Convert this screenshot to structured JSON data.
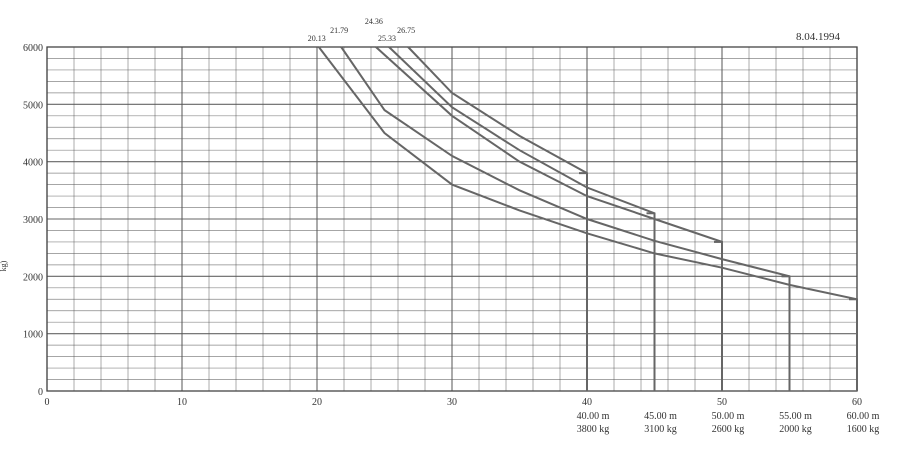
{
  "chart_data": {
    "type": "line",
    "date": "8.04.1994",
    "xlim": [
      0,
      60
    ],
    "ylim": [
      0,
      6000
    ],
    "x_ticks": [
      "0",
      "10",
      "20",
      "30",
      "40",
      "50",
      "60"
    ],
    "y_ticks": [
      "0",
      "1000",
      "2000",
      "3000",
      "4000",
      "5000",
      "6000"
    ],
    "y_axis_label_fragment": "kg)",
    "top_labels": [
      {
        "text": "20.13",
        "x": 20.13
      },
      {
        "text": "21.79",
        "x": 21.79
      },
      {
        "text": "24.36",
        "x": 24.36
      },
      {
        "text": "25.33",
        "x": 25.33
      },
      {
        "text": "26.75",
        "x": 26.75
      }
    ],
    "series": [
      {
        "boom": "40.00 m",
        "capacity": "3800 kg",
        "x_start": 26.75,
        "x_end": 40,
        "y_end": 3800,
        "points": [
          [
            26.75,
            6000
          ],
          [
            30,
            5200
          ],
          [
            35,
            4450
          ],
          [
            40,
            3800
          ],
          [
            40,
            0
          ]
        ]
      },
      {
        "boom": "45.00 m",
        "capacity": "3100 kg",
        "x_start": 25.33,
        "x_end": 45,
        "y_end": 3100,
        "points": [
          [
            25.33,
            6000
          ],
          [
            30,
            4950
          ],
          [
            35,
            4200
          ],
          [
            40,
            3550
          ],
          [
            45,
            3100
          ],
          [
            45,
            0
          ]
        ]
      },
      {
        "boom": "50.00 m",
        "capacity": "2600 kg",
        "x_start": 24.36,
        "x_end": 50,
        "y_end": 2600,
        "points": [
          [
            24.36,
            6000
          ],
          [
            30,
            4800
          ],
          [
            35,
            4000
          ],
          [
            40,
            3400
          ],
          [
            45,
            3000
          ],
          [
            50,
            2600
          ],
          [
            50,
            0
          ]
        ]
      },
      {
        "boom": "55.00 m",
        "capacity": "2000 kg",
        "x_start": 21.79,
        "x_end": 55,
        "y_end": 2000,
        "points": [
          [
            21.79,
            6000
          ],
          [
            25,
            4900
          ],
          [
            30,
            4100
          ],
          [
            35,
            3500
          ],
          [
            40,
            3000
          ],
          [
            45,
            2620
          ],
          [
            50,
            2300
          ],
          [
            55,
            2000
          ],
          [
            55,
            0
          ]
        ]
      },
      {
        "boom": "60.00 m",
        "capacity": "1600 kg",
        "x_start": 20.13,
        "x_end": 60,
        "y_end": 1600,
        "points": [
          [
            20.13,
            6000
          ],
          [
            25,
            4500
          ],
          [
            30,
            3600
          ],
          [
            35,
            3150
          ],
          [
            40,
            2750
          ],
          [
            45,
            2400
          ],
          [
            50,
            2150
          ],
          [
            55,
            1850
          ],
          [
            60,
            1600
          ],
          [
            60,
            0
          ]
        ]
      }
    ],
    "grid": true,
    "line_color": "#666666",
    "grid_color": "#555555"
  }
}
